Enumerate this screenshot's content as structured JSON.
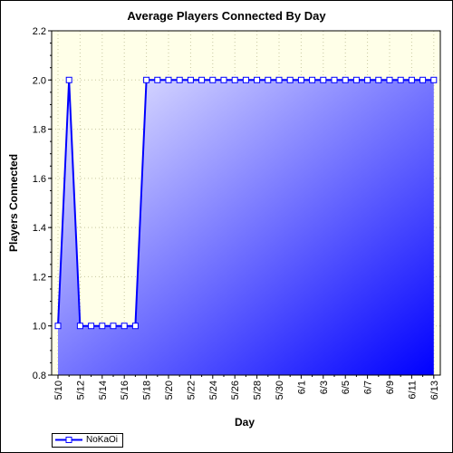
{
  "chart_data": {
    "type": "area",
    "title": "Average Players Connected By Day",
    "xlabel": "Day",
    "ylabel": "Players Connected",
    "ylim": [
      0.8,
      2.2
    ],
    "yticks": [
      "0.8",
      "1.0",
      "1.2",
      "1.4",
      "1.6",
      "1.8",
      "2.0",
      "2.2"
    ],
    "x": [
      "5/10",
      "5/11",
      "5/12",
      "5/13",
      "5/14",
      "5/15",
      "5/16",
      "5/17",
      "5/18",
      "5/19",
      "5/20",
      "5/21",
      "5/22",
      "5/23",
      "5/24",
      "5/25",
      "5/26",
      "5/27",
      "5/28",
      "5/29",
      "5/30",
      "5/31",
      "6/1",
      "6/2",
      "6/3",
      "6/4",
      "6/5",
      "6/6",
      "6/7",
      "6/8",
      "6/9",
      "6/10",
      "6/11",
      "6/12",
      "6/13"
    ],
    "xtick_labels": [
      "5/10",
      "5/12",
      "5/14",
      "5/16",
      "5/18",
      "5/20",
      "5/22",
      "5/24",
      "5/26",
      "5/28",
      "5/30",
      "6/1",
      "6/3",
      "6/5",
      "6/7",
      "6/9",
      "6/11",
      "6/13"
    ],
    "series": [
      {
        "name": "NoKaOi",
        "color": "#0000ff",
        "values": [
          1.0,
          2.0,
          1.0,
          1.0,
          1.0,
          1.0,
          1.0,
          1.0,
          2.0,
          2.0,
          2.0,
          2.0,
          2.0,
          2.0,
          2.0,
          2.0,
          2.0,
          2.0,
          2.0,
          2.0,
          2.0,
          2.0,
          2.0,
          2.0,
          2.0,
          2.0,
          2.0,
          2.0,
          2.0,
          2.0,
          2.0,
          2.0,
          2.0,
          2.0,
          2.0
        ]
      }
    ],
    "grid": true,
    "legend_position": "bottom-left",
    "plot_background": "#ffffe8",
    "fill_gradient": [
      "#eeeeff",
      "#0000ff"
    ]
  }
}
